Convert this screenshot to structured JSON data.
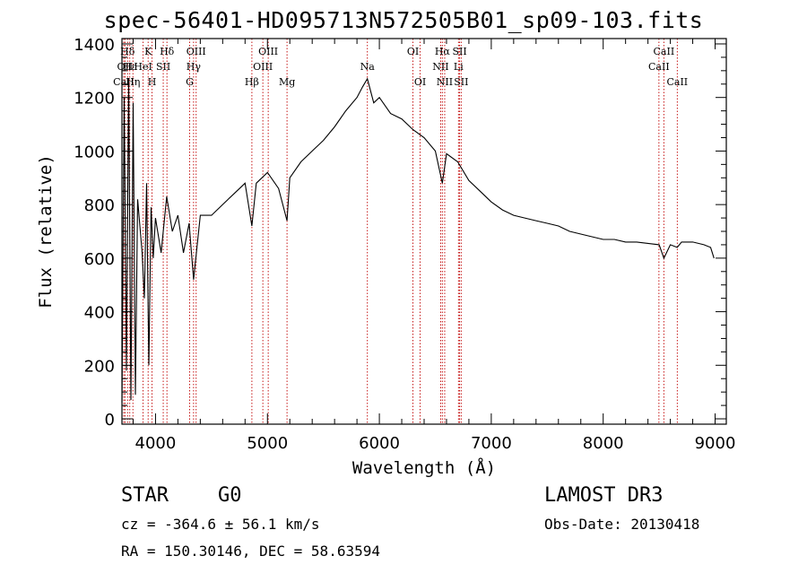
{
  "title": "spec-56401-HD095713N572505B01_sp09-103.fits",
  "chart_data": {
    "type": "line",
    "title": "spec-56401-HD095713N572505B01_sp09-103.fits",
    "xlabel": "Wavelength (Å)",
    "ylabel": "Flux (relative)",
    "xlim": [
      3700,
      9100
    ],
    "ylim": [
      -20,
      1420
    ],
    "xticks": [
      4000,
      5000,
      6000,
      7000,
      8000,
      9000
    ],
    "yticks": [
      0,
      200,
      400,
      600,
      800,
      1000,
      1200,
      1400
    ],
    "series": [
      {
        "name": "flux",
        "x": [
          3700,
          3720,
          3740,
          3760,
          3780,
          3800,
          3820,
          3840,
          3860,
          3880,
          3900,
          3920,
          3940,
          3960,
          3980,
          4000,
          4050,
          4100,
          4150,
          4200,
          4250,
          4300,
          4340,
          4400,
          4500,
          4600,
          4700,
          4800,
          4861,
          4900,
          5000,
          5100,
          5175,
          5200,
          5300,
          5400,
          5500,
          5600,
          5700,
          5800,
          5850,
          5893,
          5950,
          6000,
          6100,
          6200,
          6300,
          6400,
          6500,
          6563,
          6600,
          6700,
          6800,
          6900,
          7000,
          7100,
          7200,
          7300,
          7400,
          7500,
          7600,
          7700,
          7800,
          7900,
          8000,
          8100,
          8200,
          8300,
          8400,
          8500,
          8542,
          8600,
          8662,
          8700,
          8800,
          8900,
          8960,
          8990
        ],
        "y": [
          60,
          1200,
          180,
          1270,
          70,
          1180,
          90,
          820,
          720,
          620,
          450,
          880,
          200,
          790,
          600,
          750,
          620,
          830,
          700,
          760,
          620,
          730,
          520,
          760,
          760,
          800,
          840,
          880,
          720,
          880,
          920,
          860,
          740,
          900,
          960,
          1000,
          1040,
          1090,
          1150,
          1200,
          1240,
          1270,
          1180,
          1200,
          1140,
          1120,
          1080,
          1050,
          1000,
          880,
          990,
          960,
          890,
          850,
          810,
          780,
          760,
          750,
          740,
          730,
          720,
          700,
          690,
          680,
          670,
          670,
          660,
          660,
          655,
          650,
          600,
          650,
          640,
          660,
          660,
          650,
          640,
          600
        ]
      }
    ],
    "lines": [
      {
        "label": "Hδ",
        "x": 3750,
        "row": 1
      },
      {
        "label": "OII",
        "x": 3727,
        "row": 2
      },
      {
        "label": "CaII",
        "x": 3716,
        "row": 3
      },
      {
        "label": "Hε",
        "x": 3770,
        "row": 2
      },
      {
        "label": "Hη",
        "x": 3798,
        "row": 3
      },
      {
        "label": "K",
        "x": 3934,
        "row": 1
      },
      {
        "label": "HeI",
        "x": 3889,
        "row": 2
      },
      {
        "label": "H",
        "x": 3969,
        "row": 3
      },
      {
        "label": "SII",
        "x": 4069,
        "row": 2
      },
      {
        "label": "Hδ",
        "x": 4102,
        "row": 1
      },
      {
        "label": "OIII",
        "x": 4363,
        "row": 1
      },
      {
        "label": "Hγ",
        "x": 4340,
        "row": 2
      },
      {
        "label": "G",
        "x": 4305,
        "row": 3
      },
      {
        "label": "Hβ",
        "x": 4861,
        "row": 3
      },
      {
        "label": "OIII",
        "x": 5007,
        "row": 1
      },
      {
        "label": "OIII",
        "x": 4959,
        "row": 2
      },
      {
        "label": "Mg",
        "x": 5175,
        "row": 3
      },
      {
        "label": "Na",
        "x": 5893,
        "row": 2
      },
      {
        "label": "OI",
        "x": 6300,
        "row": 1
      },
      {
        "label": "OI",
        "x": 6364,
        "row": 3
      },
      {
        "label": "Hα",
        "x": 6563,
        "row": 1
      },
      {
        "label": "NII",
        "x": 6548,
        "row": 2
      },
      {
        "label": "NII",
        "x": 6584,
        "row": 3
      },
      {
        "label": "SII",
        "x": 6717,
        "row": 1
      },
      {
        "label": "Li",
        "x": 6707,
        "row": 2
      },
      {
        "label": "SII",
        "x": 6731,
        "row": 3
      },
      {
        "label": "CaII",
        "x": 8542,
        "row": 1
      },
      {
        "label": "CaII",
        "x": 8498,
        "row": 2
      },
      {
        "label": "CaII",
        "x": 8662,
        "row": 3
      }
    ]
  },
  "classification": {
    "type": "STAR",
    "subclass": "G0",
    "survey": "LAMOST DR3"
  },
  "info": {
    "redshift": "cz = -364.6 ± 56.1 km/s",
    "coords": "RA = 150.30146, DEC =  58.63594",
    "obs_date": "Obs-Date: 20130418"
  }
}
